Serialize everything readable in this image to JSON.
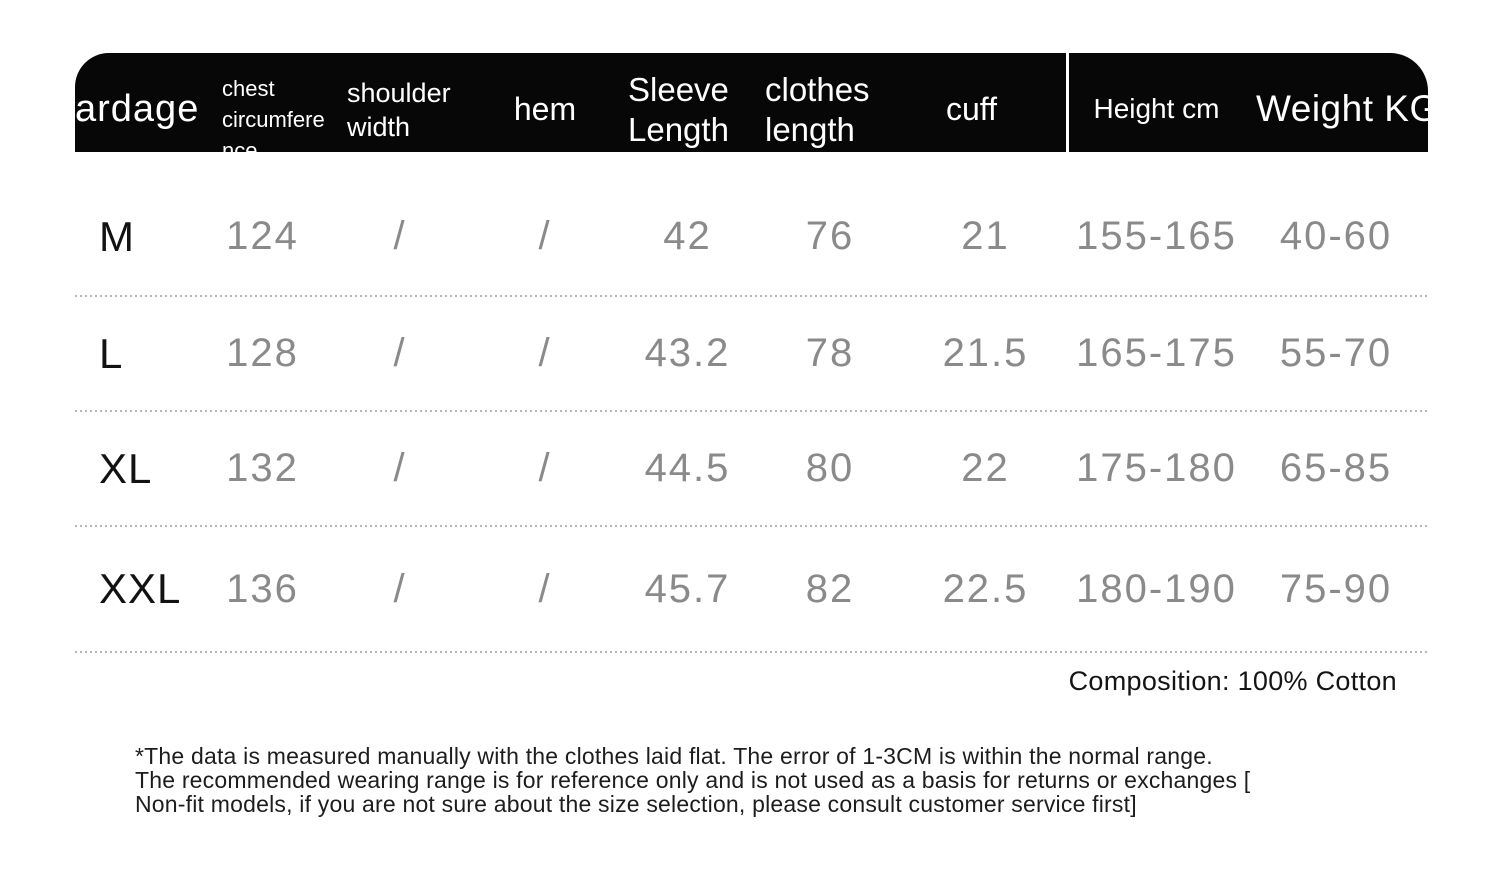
{
  "header": {
    "columns": [
      {
        "label": "ardage"
      },
      {
        "label": "chest circumference"
      },
      {
        "label": "shoulder width"
      },
      {
        "label": "hem"
      },
      {
        "label": "Sleeve Length"
      },
      {
        "label": "clothes length"
      },
      {
        "label": "cuff"
      },
      {
        "label": "Height cm"
      },
      {
        "label": "Weight KG"
      }
    ]
  },
  "rows": [
    {
      "size": "M",
      "chest": "124",
      "shoulder": "/",
      "hem": "/",
      "sleeve": "42",
      "clothes": "76",
      "cuff": "21",
      "height": "155-165",
      "weight": "40-60"
    },
    {
      "size": "L",
      "chest": "128",
      "shoulder": "/",
      "hem": "/",
      "sleeve": "43.2",
      "clothes": "78",
      "cuff": "21.5",
      "height": "165-175",
      "weight": "55-70"
    },
    {
      "size": "XL",
      "chest": "132",
      "shoulder": "/",
      "hem": "/",
      "sleeve": "44.5",
      "clothes": "80",
      "cuff": "22",
      "height": "175-180",
      "weight": "65-85"
    },
    {
      "size": "XXL",
      "chest": "136",
      "shoulder": "/",
      "hem": "/",
      "sleeve": "45.7",
      "clothes": "82",
      "cuff": "22.5",
      "height": "180-190",
      "weight": "75-90"
    }
  ],
  "composition": "Composition: 100% Cotton",
  "footnote": {
    "line1": "*The data is measured manually with the clothes laid flat. The error of 1-3CM is within the normal range.",
    "line2": "The recommended wearing range is for reference only and is not used as a basis for returns or exchanges [",
    "line3": "Non-fit models, if you are not sure about the size selection, please consult customer service first]"
  },
  "colors": {
    "header_bg": "#070707",
    "header_text": "#ffffff",
    "size_label_text": "#121212",
    "value_text": "#8a8a8a",
    "separator": "#b7b7b7",
    "note_text": "#1d1d1d",
    "background": "#ffffff"
  }
}
